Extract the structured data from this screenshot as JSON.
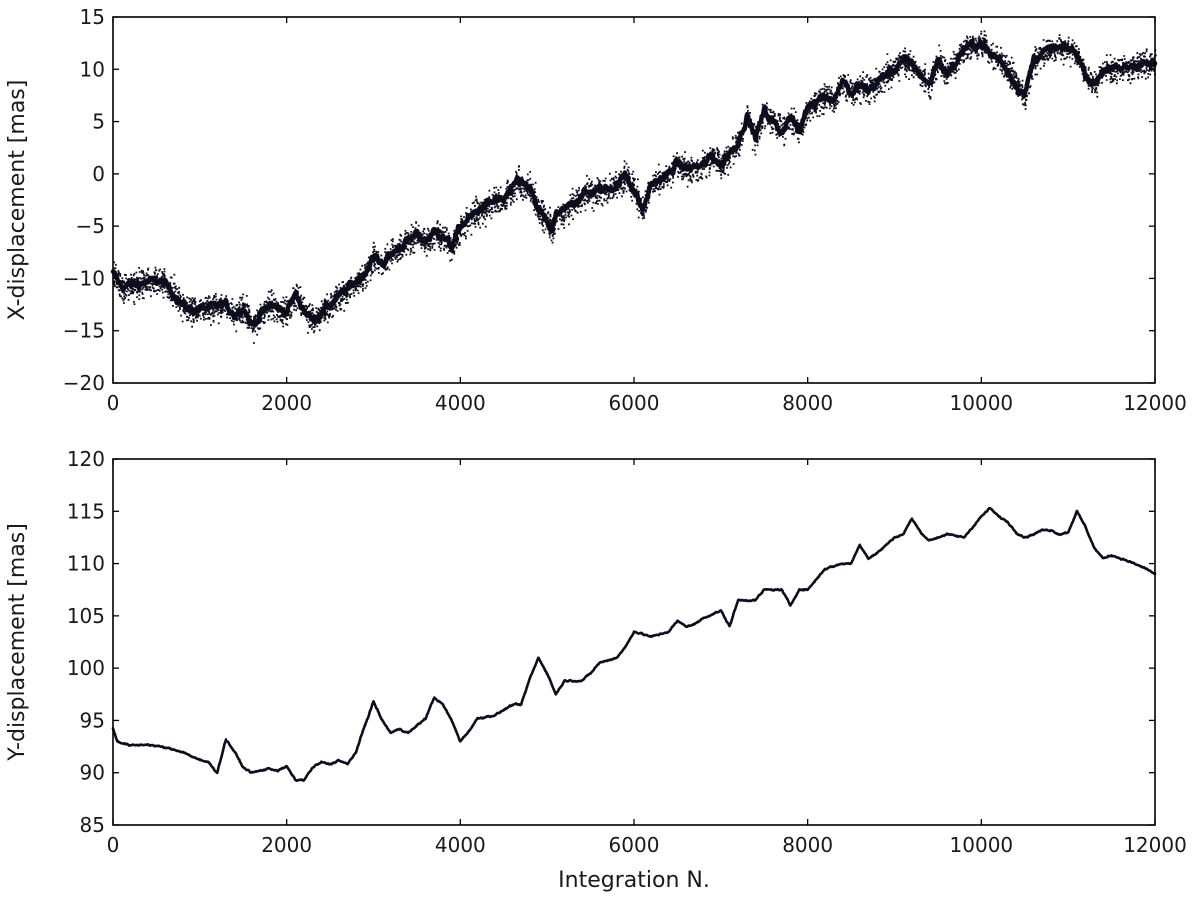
{
  "chart_data": [
    {
      "type": "scatter",
      "xlabel": "",
      "ylabel": "X-displacement [mas]",
      "xlim": [
        0,
        12000
      ],
      "ylim": [
        -20,
        15
      ],
      "xticks": [
        0,
        2000,
        4000,
        6000,
        8000,
        10000,
        12000
      ],
      "yticks": [
        -20,
        -15,
        -10,
        -5,
        0,
        5,
        10,
        15
      ],
      "xtick_labels": [
        "0",
        "2000",
        "4000",
        "6000",
        "8000",
        "10000",
        "12000"
      ],
      "ytick_labels": [
        "−20",
        "−15",
        "−10",
        "−5",
        "0",
        "5",
        "10",
        "15"
      ],
      "grid": false,
      "series": [
        {
          "color": "#0d0d1c",
          "noise_amplitude": 1.3,
          "x": [
            0,
            100,
            300,
            500,
            600,
            700,
            800,
            900,
            1100,
            1300,
            1400,
            1500,
            1600,
            1700,
            1800,
            2000,
            2100,
            2200,
            2300,
            2500,
            2700,
            2900,
            3000,
            3100,
            3300,
            3500,
            3600,
            3700,
            3800,
            3900,
            4000,
            4200,
            4400,
            4500,
            4600,
            4650,
            4800,
            4900,
            5000,
            5050,
            5100,
            5200,
            5400,
            5600,
            5800,
            5900,
            6000,
            6100,
            6200,
            6400,
            6500,
            6600,
            6800,
            6900,
            7000,
            7100,
            7200,
            7300,
            7400,
            7500,
            7600,
            7700,
            7800,
            7900,
            8000,
            8200,
            8300,
            8400,
            8500,
            8600,
            8700,
            8800,
            8900,
            9000,
            9100,
            9200,
            9300,
            9400,
            9500,
            9600,
            9700,
            9800,
            10000,
            10100,
            10200,
            10300,
            10400,
            10500,
            10600,
            10800,
            11000,
            11100,
            11200,
            11300,
            11400,
            11600,
            11800,
            12000
          ],
          "y": [
            -9.5,
            -10.8,
            -10.5,
            -10.2,
            -10.5,
            -11.5,
            -12.5,
            -13,
            -12.8,
            -12.5,
            -13.5,
            -12.8,
            -14.5,
            -13.5,
            -12.5,
            -13.2,
            -11.5,
            -13,
            -14,
            -12.5,
            -11,
            -9.5,
            -8,
            -8.5,
            -7,
            -5.8,
            -6.5,
            -5.5,
            -6,
            -7,
            -5,
            -3.5,
            -2.5,
            -2.5,
            -1.5,
            -0.5,
            -1.5,
            -3.5,
            -4.5,
            -5.5,
            -4,
            -3.5,
            -2,
            -1.5,
            -1.2,
            0,
            -1.5,
            -3.5,
            -1,
            0,
            1,
            0.5,
            0.8,
            1.8,
            0.8,
            2,
            3,
            5.5,
            3.5,
            6,
            5,
            4,
            5.5,
            4,
            6.5,
            7.5,
            7,
            9,
            7.5,
            8.5,
            8,
            8.8,
            9.5,
            10,
            11,
            10.5,
            9.5,
            8.5,
            11,
            9.5,
            10.5,
            12,
            12.5,
            11.5,
            11,
            10,
            8.5,
            7.5,
            11,
            12,
            12,
            11.5,
            9.5,
            8.5,
            10,
            10,
            10.5,
            10.5
          ]
        }
      ]
    },
    {
      "type": "line",
      "xlabel": "Integration N.",
      "ylabel": "Y-displacement [mas]",
      "xlim": [
        0,
        12000
      ],
      "ylim": [
        85,
        120
      ],
      "xticks": [
        0,
        2000,
        4000,
        6000,
        8000,
        10000,
        12000
      ],
      "yticks": [
        85,
        90,
        95,
        100,
        105,
        110,
        115,
        120
      ],
      "xtick_labels": [
        "0",
        "2000",
        "4000",
        "6000",
        "8000",
        "10000",
        "12000"
      ],
      "ytick_labels": [
        "85",
        "90",
        "95",
        "100",
        "105",
        "110",
        "115",
        "120"
      ],
      "grid": false,
      "series": [
        {
          "color": "#0d0d1c",
          "noise_amplitude": 0.25,
          "x": [
            0,
            50,
            200,
            400,
            600,
            800,
            1000,
            1100,
            1200,
            1300,
            1400,
            1500,
            1600,
            1800,
            1900,
            2000,
            2100,
            2200,
            2300,
            2400,
            2500,
            2600,
            2700,
            2800,
            2900,
            3000,
            3100,
            3200,
            3300,
            3400,
            3500,
            3600,
            3700,
            3800,
            3900,
            4000,
            4100,
            4200,
            4400,
            4600,
            4700,
            4800,
            4900,
            5000,
            5100,
            5200,
            5400,
            5500,
            5600,
            5800,
            5900,
            6000,
            6200,
            6400,
            6500,
            6600,
            6700,
            6800,
            7000,
            7100,
            7200,
            7400,
            7500,
            7700,
            7800,
            7900,
            8000,
            8200,
            8400,
            8500,
            8600,
            8700,
            8800,
            9000,
            9100,
            9200,
            9300,
            9400,
            9500,
            9600,
            9800,
            10000,
            10100,
            10200,
            10300,
            10400,
            10500,
            10600,
            10700,
            10800,
            10900,
            11000,
            11100,
            11200,
            11300,
            11400,
            11500,
            11700,
            11900,
            12000
          ],
          "y": [
            94.2,
            93,
            92.6,
            92.7,
            92.4,
            92,
            91.2,
            91,
            90,
            93.2,
            92,
            90.5,
            90,
            90.4,
            90.2,
            90.6,
            89.3,
            89.3,
            90.5,
            91,
            90.8,
            91.2,
            90.8,
            92,
            94.5,
            96.8,
            95,
            93.8,
            94.2,
            93.8,
            94.5,
            95.2,
            97.2,
            96.5,
            95,
            93,
            94,
            95.2,
            95.5,
            96.5,
            96.5,
            99,
            101,
            99.5,
            97.5,
            98.8,
            98.8,
            99.5,
            100.5,
            101,
            102,
            103.5,
            103,
            103.5,
            104.5,
            104,
            104.2,
            104.8,
            105.5,
            104,
            106.5,
            106.5,
            107.5,
            107.5,
            106,
            107.5,
            107.5,
            109.5,
            110,
            110,
            111.8,
            110.5,
            111,
            112.5,
            112.8,
            114.3,
            113,
            112.2,
            112.5,
            112.8,
            112.5,
            114.5,
            115.3,
            114.5,
            114,
            113,
            112.5,
            112.8,
            113.2,
            113.2,
            112.8,
            113,
            115,
            113.5,
            111.5,
            110.5,
            110.8,
            110.2,
            109.5,
            109
          ]
        }
      ]
    }
  ]
}
